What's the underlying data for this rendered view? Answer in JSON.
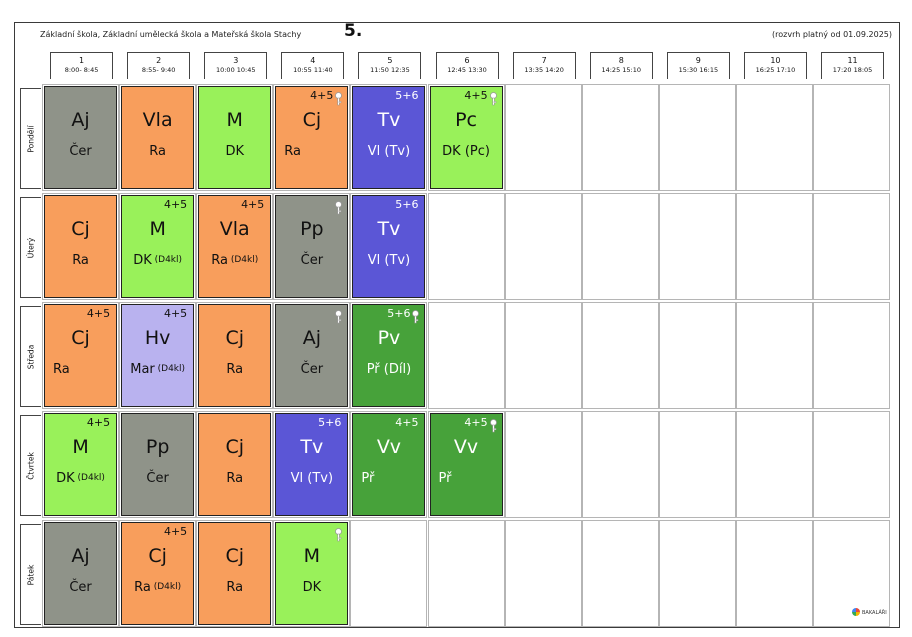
{
  "header": {
    "school": "Základní škola, Základní umělecká škola a Mateřská škola Stachy",
    "class": "5.",
    "valid": "(rozvrh platný od 01.09.2025)"
  },
  "periods": [
    {
      "num": "1",
      "time": "8:00- 8:45"
    },
    {
      "num": "2",
      "time": "8:55- 9:40"
    },
    {
      "num": "3",
      "time": "10:00 10:45"
    },
    {
      "num": "4",
      "time": "10:55 11:40"
    },
    {
      "num": "5",
      "time": "11:50 12:35"
    },
    {
      "num": "6",
      "time": "12:45 13:30"
    },
    {
      "num": "7",
      "time": "13:35 14:20"
    },
    {
      "num": "8",
      "time": "14:25 15:10"
    },
    {
      "num": "9",
      "time": "15:30 16:15"
    },
    {
      "num": "10",
      "time": "16:25 17:10"
    },
    {
      "num": "11",
      "time": "17:20 18:05"
    }
  ],
  "days": [
    "Pondělí",
    "Úterý",
    "Středa",
    "Čtvrtek",
    "Pátek"
  ],
  "colors": {
    "gray": "#8f9389",
    "orange": "#f89e5c",
    "green": "#99f15a",
    "blue": "#5b56d6",
    "lavender": "#b9b2ef",
    "darkgreen": "#47a23a"
  },
  "lessons": [
    {
      "day": 0,
      "period": 0,
      "color": "gray",
      "subject": "Aj",
      "teacher": "Čer",
      "group": "",
      "room": "",
      "key": false
    },
    {
      "day": 0,
      "period": 1,
      "color": "orange",
      "subject": "Vla",
      "teacher": "Ra",
      "group": "",
      "room": "",
      "key": false
    },
    {
      "day": 0,
      "period": 2,
      "color": "green",
      "subject": "M",
      "teacher": "DK",
      "group": "",
      "room": "",
      "key": false
    },
    {
      "day": 0,
      "period": 3,
      "color": "orange",
      "subject": "Cj",
      "teacher": "Ra",
      "group": "4+5",
      "room": "",
      "key": true,
      "left": true
    },
    {
      "day": 0,
      "period": 4,
      "color": "blue",
      "subject": "Tv",
      "teacher": "Vl",
      "group": "5+6",
      "room": "(Tv)",
      "key": false
    },
    {
      "day": 0,
      "period": 5,
      "color": "green",
      "subject": "Pc",
      "teacher": "DK",
      "group": "4+5",
      "room": "(Pc)",
      "key": true
    },
    {
      "day": 1,
      "period": 0,
      "color": "orange",
      "subject": "Cj",
      "teacher": "Ra",
      "group": "",
      "room": "",
      "key": false
    },
    {
      "day": 1,
      "period": 1,
      "color": "green",
      "subject": "M",
      "teacher": "DK",
      "group": "4+5",
      "room": "(D4kl)",
      "key": false,
      "small": true
    },
    {
      "day": 1,
      "period": 2,
      "color": "orange",
      "subject": "Vla",
      "teacher": "Ra",
      "group": "4+5",
      "room": "(D4kl)",
      "key": false,
      "small": true
    },
    {
      "day": 1,
      "period": 3,
      "color": "gray",
      "subject": "Pp",
      "teacher": "Čer",
      "group": "",
      "room": "",
      "key": true
    },
    {
      "day": 1,
      "period": 4,
      "color": "blue",
      "subject": "Tv",
      "teacher": "Vl",
      "group": "5+6",
      "room": "(Tv)",
      "key": false
    },
    {
      "day": 2,
      "period": 0,
      "color": "orange",
      "subject": "Cj",
      "teacher": "Ra",
      "group": "4+5",
      "room": "",
      "key": false,
      "left": true
    },
    {
      "day": 2,
      "period": 1,
      "color": "lavender",
      "subject": "Hv",
      "teacher": "Mar",
      "group": "4+5",
      "room": "(D4kl)",
      "key": false,
      "small": true
    },
    {
      "day": 2,
      "period": 2,
      "color": "orange",
      "subject": "Cj",
      "teacher": "Ra",
      "group": "",
      "room": "",
      "key": false
    },
    {
      "day": 2,
      "period": 3,
      "color": "gray",
      "subject": "Aj",
      "teacher": "Čer",
      "group": "",
      "room": "",
      "key": true
    },
    {
      "day": 2,
      "period": 4,
      "color": "darkgreen",
      "subject": "Pv",
      "teacher": "Př",
      "group": "5+6",
      "room": "(Díl)",
      "key": true
    },
    {
      "day": 3,
      "period": 0,
      "color": "green",
      "subject": "M",
      "teacher": "DK",
      "group": "4+5",
      "room": "(D4kl)",
      "key": false,
      "small": true
    },
    {
      "day": 3,
      "period": 1,
      "color": "gray",
      "subject": "Pp",
      "teacher": "Čer",
      "group": "",
      "room": "",
      "key": false
    },
    {
      "day": 3,
      "period": 2,
      "color": "orange",
      "subject": "Cj",
      "teacher": "Ra",
      "group": "",
      "room": "",
      "key": false
    },
    {
      "day": 3,
      "period": 3,
      "color": "blue",
      "subject": "Tv",
      "teacher": "Vl",
      "group": "5+6",
      "room": "(Tv)",
      "key": false
    },
    {
      "day": 3,
      "period": 4,
      "color": "darkgreen",
      "subject": "Vv",
      "teacher": "Př",
      "group": "4+5",
      "room": "",
      "key": false,
      "left": true
    },
    {
      "day": 3,
      "period": 5,
      "color": "darkgreen",
      "subject": "Vv",
      "teacher": "Př",
      "group": "4+5",
      "room": "",
      "key": true,
      "left": true
    },
    {
      "day": 4,
      "period": 0,
      "color": "gray",
      "subject": "Aj",
      "teacher": "Čer",
      "group": "",
      "room": "",
      "key": false
    },
    {
      "day": 4,
      "period": 1,
      "color": "orange",
      "subject": "Cj",
      "teacher": "Ra",
      "group": "4+5",
      "room": "(D4kl)",
      "key": false,
      "small": true
    },
    {
      "day": 4,
      "period": 2,
      "color": "orange",
      "subject": "Cj",
      "teacher": "Ra",
      "group": "",
      "room": "",
      "key": false
    },
    {
      "day": 4,
      "period": 3,
      "color": "green",
      "subject": "M",
      "teacher": "DK",
      "group": "",
      "room": "",
      "key": true
    }
  ],
  "footer": {
    "logo_text": "BAKALÁŘI"
  }
}
